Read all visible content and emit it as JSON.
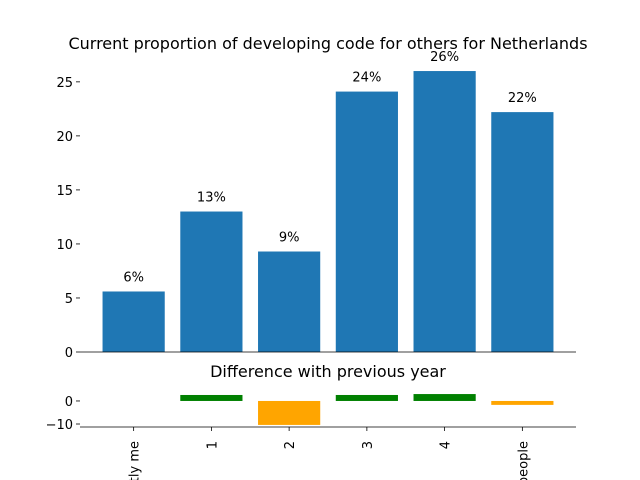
{
  "chart_data": [
    {
      "type": "bar",
      "title": "Current proportion of developing code for others for Netherlands",
      "values": [
        5.6,
        13,
        9.3,
        24.1,
        26,
        22.2
      ],
      "value_labels": [
        "6%",
        "13%",
        "9%",
        "24%",
        "26%",
        "22%"
      ],
      "color": "#1f77b4",
      "ylim": [
        0,
        27.3
      ],
      "yticks": [
        0,
        5,
        10,
        15,
        20,
        25
      ]
    },
    {
      "type": "bar",
      "title": "Difference with previous year",
      "categories": [
        "tly me",
        "1",
        "2",
        "3",
        "4",
        "people"
      ],
      "values": [
        0,
        2.6,
        -10.4,
        2.6,
        3,
        -1.7
      ],
      "colors": [
        "#008000",
        "#008000",
        "#ffa500",
        "#008000",
        "#008000",
        "#ffa500"
      ],
      "ylim": [
        -11.3,
        7.8
      ],
      "yticks": [
        {
          "value": -10,
          "label": "−10"
        },
        0
      ]
    }
  ]
}
